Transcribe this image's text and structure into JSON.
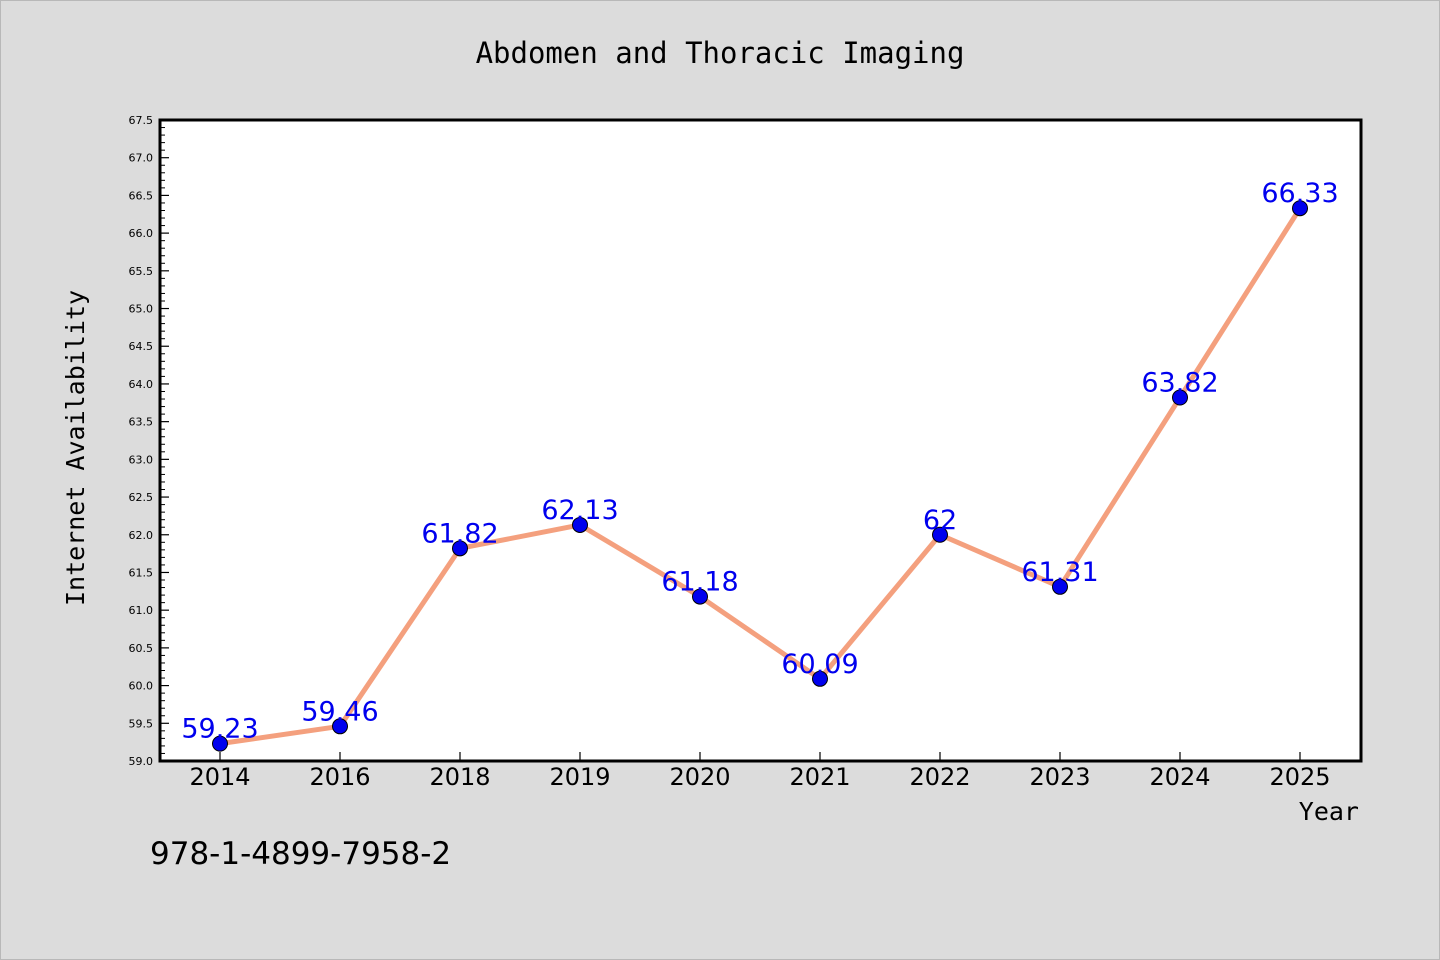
{
  "chart_data": {
    "type": "line",
    "title": "Abdomen and Thoracic Imaging",
    "xlabel": "Year",
    "ylabel": "Internet Availability",
    "categories": [
      "2014",
      "2016",
      "2018",
      "2019",
      "2020",
      "2021",
      "2022",
      "2023",
      "2024",
      "2025"
    ],
    "values": [
      59.23,
      59.46,
      61.82,
      62.13,
      61.18,
      60.09,
      62,
      61.31,
      63.82,
      66.33
    ],
    "data_labels": [
      "59.23",
      "59.46",
      "61.82",
      "62.13",
      "61.18",
      "60.09",
      "62",
      "61.31",
      "63.82",
      "66.33"
    ],
    "ylim": [
      59.0,
      67.5
    ],
    "yticks": [
      "59.0",
      "59.5",
      "60.0",
      "60.5",
      "61.0",
      "61.5",
      "62.0",
      "62.5",
      "63.0",
      "63.5",
      "64.0",
      "64.5",
      "65.0",
      "65.5",
      "66.0",
      "66.5",
      "67.0",
      "67.5"
    ],
    "grid": false,
    "legend": "none",
    "colors": {
      "line": "#f4a07e",
      "marker": "#0000ee",
      "label": "#0000ee",
      "background": "#dcdcdc",
      "plot_background": "#ffffff"
    }
  },
  "annotation": "978-1-4899-7958-2"
}
